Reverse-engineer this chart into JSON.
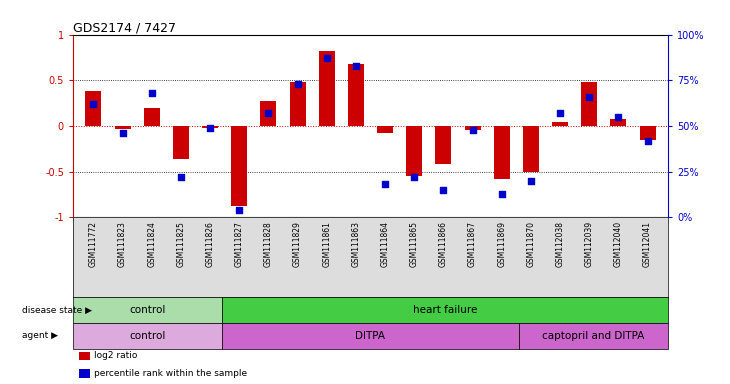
{
  "title": "GDS2174 / 7427",
  "samples": [
    "GSM111772",
    "GSM111823",
    "GSM111824",
    "GSM111825",
    "GSM111826",
    "GSM111827",
    "GSM111828",
    "GSM111829",
    "GSM111861",
    "GSM111863",
    "GSM111864",
    "GSM111865",
    "GSM111866",
    "GSM111867",
    "GSM111869",
    "GSM111870",
    "GSM112038",
    "GSM112039",
    "GSM112040",
    "GSM112041"
  ],
  "log2_ratio": [
    0.38,
    -0.03,
    0.2,
    -0.36,
    -0.02,
    -0.88,
    0.27,
    0.48,
    0.82,
    0.68,
    -0.08,
    -0.55,
    -0.42,
    -0.04,
    -0.58,
    -0.5,
    0.04,
    0.48,
    0.08,
    -0.15
  ],
  "percentile_rank": [
    62,
    46,
    68,
    22,
    49,
    4,
    57,
    73,
    87,
    83,
    18,
    22,
    15,
    48,
    13,
    20,
    57,
    66,
    55,
    42
  ],
  "bar_color": "#cc0000",
  "dot_color": "#0000cc",
  "zero_line_color": "#cc0000",
  "background_color": "#ffffff",
  "tick_label_color_left": "#cc0000",
  "tick_label_color_right": "#0000cc",
  "ylim_left": [
    -1,
    1
  ],
  "ylim_right": [
    0,
    100
  ],
  "disease_state_groups": [
    {
      "label": "control",
      "start": 0,
      "end": 5,
      "color": "#aaddaa"
    },
    {
      "label": "heart failure",
      "start": 5,
      "end": 20,
      "color": "#44cc44"
    }
  ],
  "agent_groups": [
    {
      "label": "control",
      "start": 0,
      "end": 5,
      "color": "#ddaadd"
    },
    {
      "label": "DITPA",
      "start": 5,
      "end": 15,
      "color": "#cc66cc"
    },
    {
      "label": "captopril and DITPA",
      "start": 15,
      "end": 20,
      "color": "#cc66cc"
    }
  ],
  "legend_items": [
    {
      "label": "log2 ratio",
      "color": "#cc0000",
      "marker": "s"
    },
    {
      "label": "percentile rank within the sample",
      "color": "#0000cc",
      "marker": "s"
    }
  ],
  "xtick_bg": "#dddddd"
}
